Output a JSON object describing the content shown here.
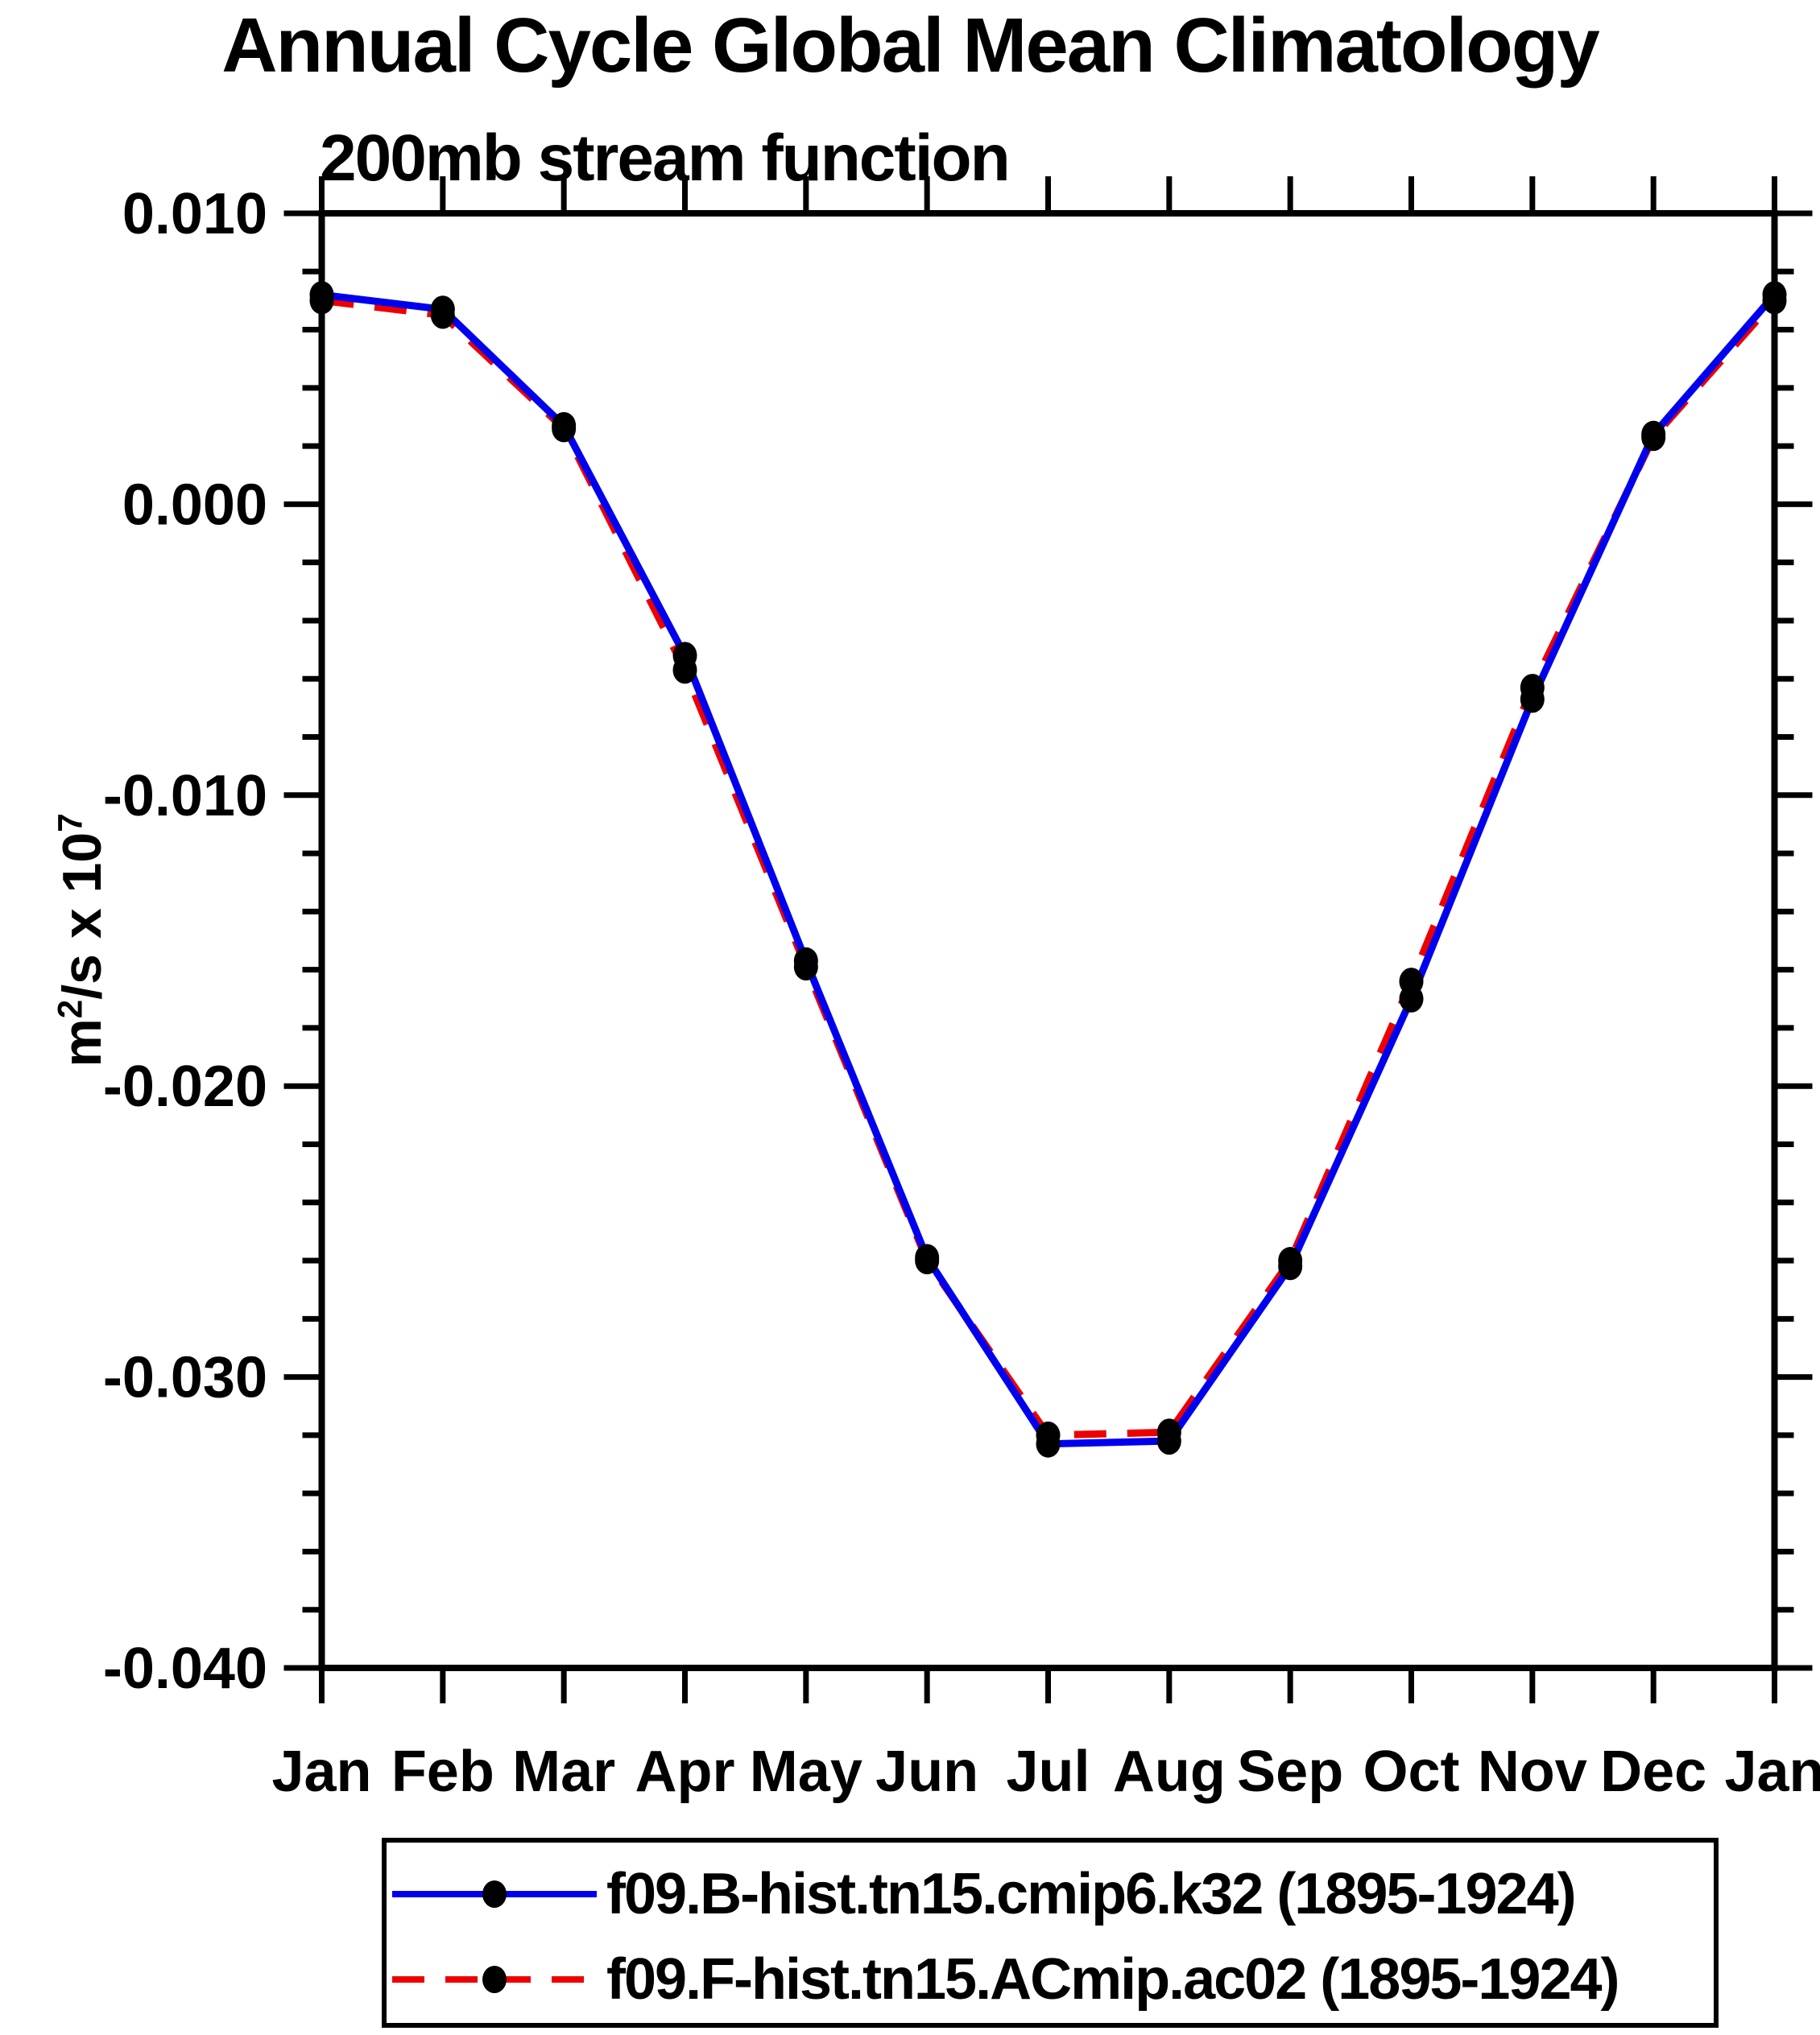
{
  "page": {
    "background": "#ffffff"
  },
  "header": {
    "title": "Annual Cycle Global Mean Climatology",
    "subtitle": "200mb stream function"
  },
  "y_axis": {
    "unit_label_parts": {
      "base1": "m",
      "sup1": "2",
      "base2": "/s x 10",
      "sup2": "7"
    }
  },
  "chart_data": {
    "type": "line",
    "title": "Annual Cycle Global Mean Climatology",
    "subtitle": "200mb stream function",
    "xlabel": "",
    "ylabel": "m^2/s x 10^7",
    "categories": [
      "Jan",
      "Feb",
      "Mar",
      "Apr",
      "May",
      "Jun",
      "Jul",
      "Aug",
      "Sep",
      "Oct",
      "Nov",
      "Dec",
      "Jan"
    ],
    "series": [
      {
        "name": "f09.B-hist.tn15.cmip6.k32 (1895-1924)",
        "color": "#0000ee",
        "line_style": "solid",
        "marker": "black-filled-circle",
        "marker_color": "#000000",
        "values": [
          0.0072,
          0.0067,
          0.0027,
          -0.0052,
          -0.0157,
          -0.0259,
          -0.0323,
          -0.0322,
          -0.0262,
          -0.017,
          -0.0067,
          0.0024,
          0.0072
        ]
      },
      {
        "name": "f09.F-hist.tn15.ACmip.ac02 (1895-1924)",
        "color": "#ee0000",
        "line_style": "dashed",
        "marker": "black-filled-circle",
        "marker_color": "#000000",
        "values": [
          0.007,
          0.0065,
          0.0026,
          -0.0057,
          -0.0159,
          -0.026,
          -0.032,
          -0.0319,
          -0.026,
          -0.0164,
          -0.0063,
          0.0023,
          0.007
        ]
      }
    ],
    "ylim": [
      -0.04,
      0.01
    ],
    "yticks": {
      "major_values": [
        0.01,
        0.0,
        -0.01,
        -0.02,
        -0.03,
        -0.04
      ],
      "major_labels": [
        "0.010",
        "0.000",
        "-0.010",
        "-0.020",
        "-0.030",
        "-0.040"
      ],
      "minor_step": 0.002
    },
    "grid": false,
    "axis_color": "#000000",
    "legend_position": "bottom"
  },
  "legend": {
    "entries": [
      {
        "label": "f09.B-hist.tn15.cmip6.k32 (1895-1924)"
      },
      {
        "label": "f09.F-hist.tn15.ACmip.ac02 (1895-1924)"
      }
    ]
  }
}
